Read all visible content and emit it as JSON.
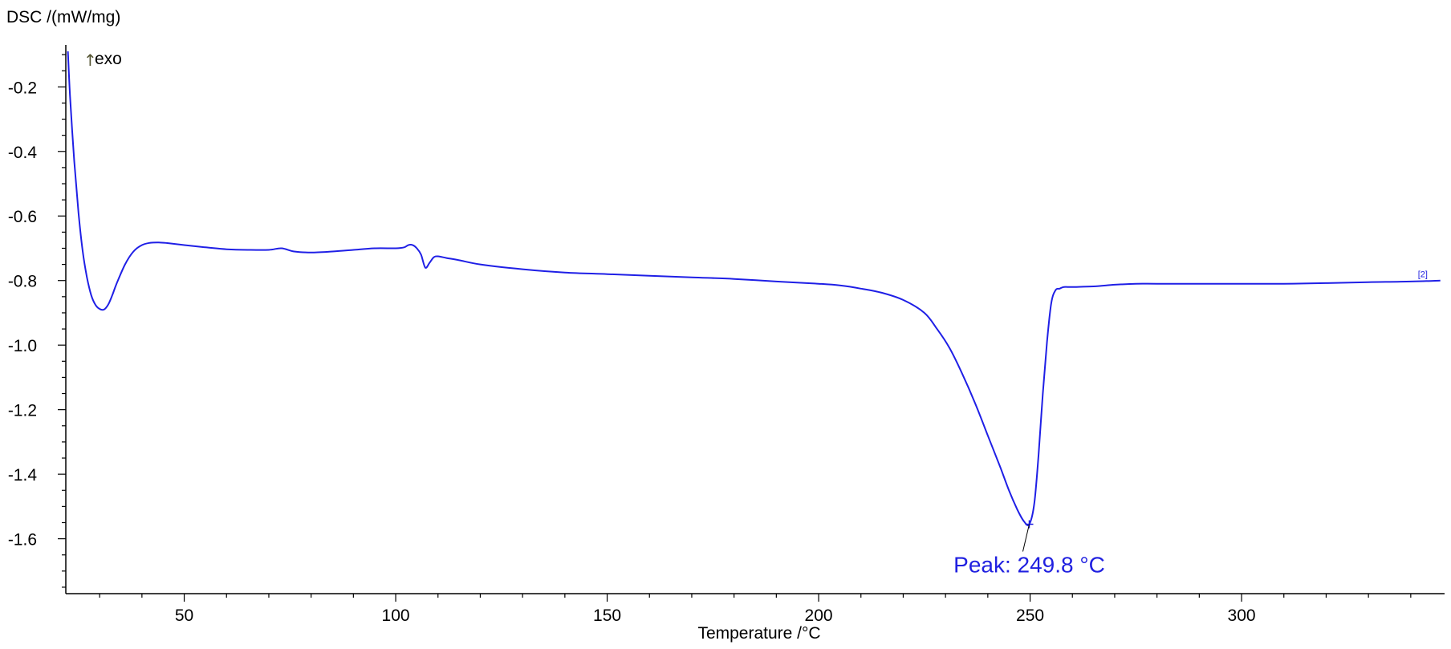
{
  "chart_data": {
    "type": "line",
    "title": "",
    "ylabel": "DSC /(mW/mg)",
    "xlabel": "Temperature /°C",
    "exo_label": "exo",
    "xlim": [
      22,
      348
    ],
    "ylim": [
      -1.77,
      -0.07
    ],
    "x_ticks": [
      50,
      100,
      150,
      200,
      250,
      300
    ],
    "x_tick_labels": [
      "50",
      "100",
      "150",
      "200",
      "250",
      "300"
    ],
    "x_minor_step": 10,
    "y_ticks": [
      -0.2,
      -0.4,
      -0.6,
      -0.8,
      -1.0,
      -1.2,
      -1.4,
      -1.6
    ],
    "y_tick_labels": [
      "-0.2",
      "-0.4",
      "-0.6",
      "-0.8",
      "-1.0",
      "-1.2",
      "-1.4",
      "-1.6"
    ],
    "y_minor_step": 0.05,
    "grid": false,
    "line_color": "#1f1fe6",
    "series": [
      {
        "x": [
          22.5,
          23,
          24,
          25,
          26,
          27,
          28,
          29,
          30,
          31,
          32,
          33,
          34,
          36,
          38,
          40,
          42,
          44,
          46,
          50,
          55,
          60,
          65,
          70,
          73,
          76,
          80,
          85,
          90,
          95,
          100,
          102,
          103,
          104,
          105,
          106,
          107,
          108,
          109,
          110,
          112,
          115,
          120,
          130,
          140,
          150,
          160,
          170,
          180,
          190,
          200,
          205,
          210,
          215,
          220,
          225,
          228,
          231,
          234,
          237,
          240,
          243,
          245,
          247,
          248.5,
          249.8,
          251,
          252,
          253,
          254,
          255,
          256,
          257,
          258,
          260,
          265,
          270,
          275,
          280,
          290,
          300,
          310,
          320,
          330,
          340,
          347
        ],
        "y": [
          -0.09,
          -0.23,
          -0.43,
          -0.59,
          -0.71,
          -0.79,
          -0.845,
          -0.875,
          -0.888,
          -0.89,
          -0.875,
          -0.845,
          -0.81,
          -0.75,
          -0.71,
          -0.69,
          -0.683,
          -0.682,
          -0.684,
          -0.69,
          -0.697,
          -0.703,
          -0.705,
          -0.705,
          -0.7,
          -0.71,
          -0.713,
          -0.71,
          -0.705,
          -0.7,
          -0.7,
          -0.697,
          -0.69,
          -0.69,
          -0.7,
          -0.72,
          -0.76,
          -0.745,
          -0.728,
          -0.725,
          -0.73,
          -0.737,
          -0.75,
          -0.765,
          -0.775,
          -0.78,
          -0.785,
          -0.79,
          -0.795,
          -0.803,
          -0.81,
          -0.815,
          -0.825,
          -0.838,
          -0.86,
          -0.9,
          -0.95,
          -1.01,
          -1.09,
          -1.18,
          -1.28,
          -1.38,
          -1.45,
          -1.51,
          -1.545,
          -1.555,
          -1.49,
          -1.34,
          -1.15,
          -0.99,
          -0.87,
          -0.83,
          -0.825,
          -0.82,
          -0.82,
          -0.818,
          -0.813,
          -0.81,
          -0.81,
          -0.81,
          -0.81,
          -0.81,
          -0.808,
          -0.805,
          -0.803,
          -0.8
        ]
      }
    ],
    "annotation": {
      "text": "Peak: 249.8 °C",
      "x": 249.8,
      "y": -1.555,
      "color": "#2020e0"
    },
    "series_tag": "[2]"
  }
}
